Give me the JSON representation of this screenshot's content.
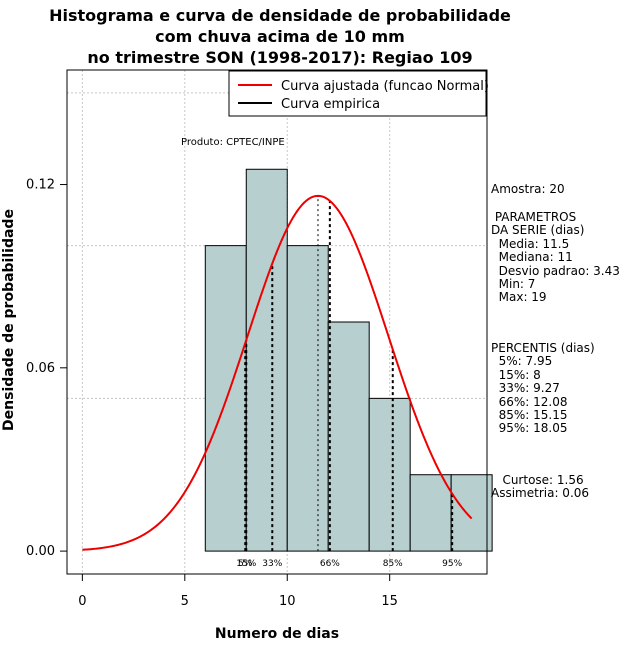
{
  "chart_data": {
    "type": "bar",
    "title_lines": [
      "Histograma e curva de densidade de probabilidade",
      "com chuva acima de 10 mm",
      "no trimestre SON (1998-2017): Regiao 109"
    ],
    "xlabel": "Numero de dias",
    "ylabel": "Densidade de probabilidade",
    "xlim": [
      -0.75,
      19.75
    ],
    "ylim": [
      -0.0075,
      0.1575
    ],
    "xticks": [
      0,
      5,
      10,
      15
    ],
    "xtick_labels": [
      "0",
      "5",
      "10",
      "15"
    ],
    "yticks": [
      0.0,
      0.06,
      0.12
    ],
    "ytick_labels": [
      "0.00",
      "0.06",
      "0.12"
    ],
    "grid": true,
    "grid_x": [
      0,
      5,
      10,
      15
    ],
    "grid_y": [
      0.05,
      0.1,
      0.15
    ],
    "bins": [
      {
        "x0": 6,
        "x1": 8,
        "density": 0.1
      },
      {
        "x0": 8,
        "x1": 10,
        "density": 0.125
      },
      {
        "x0": 10,
        "x1": 12,
        "density": 0.1
      },
      {
        "x0": 12,
        "x1": 14,
        "density": 0.075
      },
      {
        "x0": 14,
        "x1": 16,
        "density": 0.05
      },
      {
        "x0": 16,
        "x1": 18,
        "density": 0.025
      },
      {
        "x0": 18,
        "x1": 20,
        "density": 0.025
      }
    ],
    "bar_color": "#b7cfcf",
    "normal_curve": {
      "name": "Curva ajustada (funcao Normal)",
      "mean": 11.5,
      "sd": 3.43,
      "x_from": 0,
      "x_to": 19,
      "color": "#ee0000"
    },
    "empirical_curve": {
      "name": "Curva empirica",
      "color": "#000000"
    },
    "percentiles": [
      {
        "label": "5%",
        "value": 7.95
      },
      {
        "label": "15%",
        "value": 8
      },
      {
        "label": "33%",
        "value": 9.27
      },
      {
        "label": "66%",
        "value": 12.08
      },
      {
        "label": "85%",
        "value": 15.15
      },
      {
        "label": "95%",
        "value": 18.05
      }
    ],
    "legend_position": "top-right",
    "produto": "Produto: CPTEC/INPE"
  },
  "side_panel": {
    "amostra": "Amostra: 20",
    "parametros": [
      " PARAMETROS",
      "DA SERIE (dias)",
      "  Media: 11.5",
      "  Mediana: 11",
      "  Desvio padrao: 3.43",
      "  Min: 7",
      "  Max: 19"
    ],
    "percentis": [
      "PERCENTIS (dias)",
      "  5%: 7.95",
      "  15%: 8",
      "  33%: 9.27",
      "  66%: 12.08",
      "  85%: 15.15",
      "  95%: 18.05"
    ],
    "forma": [
      "   Curtose: 1.56",
      "Assimetria: 0.06"
    ]
  }
}
